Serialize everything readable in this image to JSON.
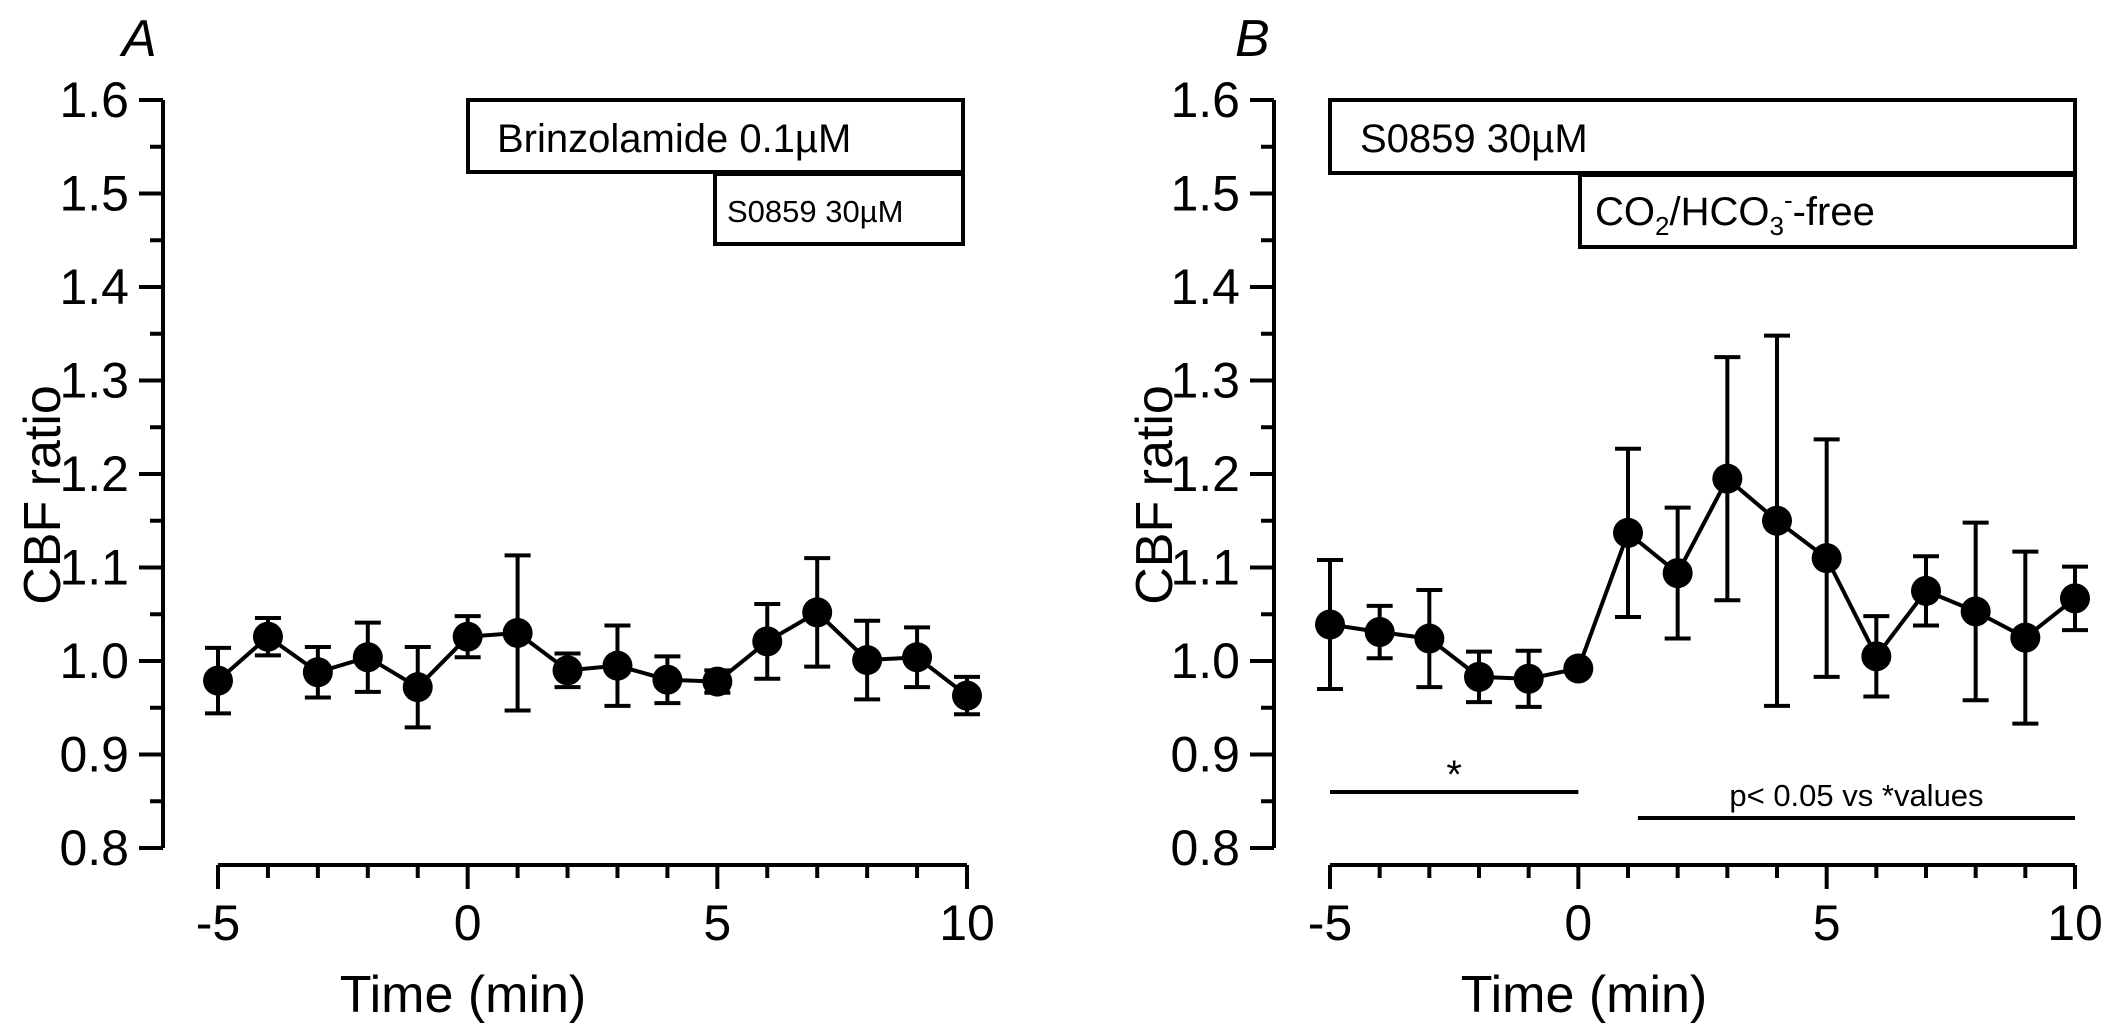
{
  "chart_data": [
    {
      "type": "line",
      "panel_label": "A",
      "xlabel": "Time (min)",
      "ylabel": "CBF ratio",
      "xlim": [
        -5,
        10
      ],
      "ylim": [
        0.8,
        1.6
      ],
      "xticks": [
        "-5",
        "0",
        "5",
        "10"
      ],
      "yticks": [
        "0.8",
        "0.9",
        "1.0",
        "1.1",
        "1.2",
        "1.3",
        "1.4",
        "1.5",
        "1.6"
      ],
      "series": [
        {
          "x": [
            -5,
            -4,
            -3,
            -2,
            -1,
            0,
            1,
            2,
            3,
            4,
            5,
            6,
            7,
            8,
            9,
            10
          ],
          "y": [
            0.979,
            1.026,
            0.988,
            1.004,
            0.972,
            1.026,
            1.03,
            0.99,
            0.995,
            0.98,
            0.978,
            1.021,
            1.052,
            1.001,
            1.004,
            0.963
          ],
          "err": [
            0.035,
            0.02,
            0.027,
            0.037,
            0.043,
            0.022,
            0.083,
            0.018,
            0.043,
            0.025,
            0.012,
            0.04,
            0.058,
            0.042,
            0.032,
            0.02
          ]
        }
      ],
      "annotations": {
        "top_box": "Brinzolamide 0.1µM",
        "bottom_box": "S0859 30µM"
      },
      "grid": false
    },
    {
      "type": "line",
      "panel_label": "B",
      "xlabel": "Time (min)",
      "ylabel": "CBF ratio",
      "xlim": [
        -5,
        10
      ],
      "ylim": [
        0.8,
        1.6
      ],
      "xticks": [
        "-5",
        "0",
        "5",
        "10"
      ],
      "yticks": [
        "0.8",
        "0.9",
        "1.0",
        "1.1",
        "1.2",
        "1.3",
        "1.4",
        "1.5",
        "1.6"
      ],
      "series": [
        {
          "x": [
            -5,
            -4,
            -3,
            -2,
            -1,
            0,
            1,
            2,
            3,
            4,
            5,
            6,
            7,
            8,
            9,
            10
          ],
          "y": [
            1.039,
            1.031,
            1.024,
            0.983,
            0.981,
            0.992,
            1.137,
            1.094,
            1.195,
            1.15,
            1.11,
            1.005,
            1.075,
            1.053,
            1.025,
            1.067
          ],
          "err": [
            0.069,
            0.028,
            0.052,
            0.027,
            0.03,
            0.0,
            0.09,
            0.07,
            0.13,
            0.198,
            0.127,
            0.043,
            0.037,
            0.095,
            0.092,
            0.034
          ]
        }
      ],
      "annotations": {
        "top_box": "S0859 30µM",
        "bottom_box": {
          "prefix": "CO",
          "sub1": "2",
          "middle": "/HCO",
          "sub2": "3",
          "sup": "-",
          "suffix": "-free"
        },
        "star": "*",
        "sig_text": "p< 0.05 vs *values",
        "star_range": [
          -5,
          0
        ],
        "sig_range": [
          1.2,
          10
        ]
      },
      "grid": false
    }
  ]
}
